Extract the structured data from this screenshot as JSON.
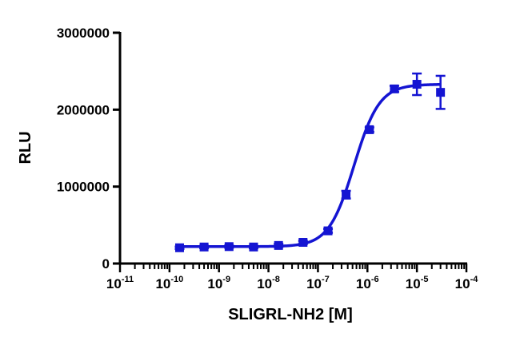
{
  "chart_data": {
    "type": "scatter",
    "xlabel": "SLIGRL-NH2 [M]",
    "ylabel": "RLU",
    "x_scale": "log",
    "xlim": [
      1e-11,
      0.0001
    ],
    "ylim": [
      0,
      3000000
    ],
    "x_ticks": [
      {
        "base": "10",
        "exp": "-11",
        "value": 1e-11
      },
      {
        "base": "10",
        "exp": "-10",
        "value": 1e-10
      },
      {
        "base": "10",
        "exp": "-9",
        "value": 1e-09
      },
      {
        "base": "10",
        "exp": "-8",
        "value": 1e-08
      },
      {
        "base": "10",
        "exp": "-7",
        "value": 1e-07
      },
      {
        "base": "10",
        "exp": "-6",
        "value": 1e-06
      },
      {
        "base": "10",
        "exp": "-5",
        "value": 1e-05
      },
      {
        "base": "10",
        "exp": "-4",
        "value": 0.0001
      }
    ],
    "y_ticks": [
      {
        "label": "0",
        "value": 0
      },
      {
        "label": "1000000",
        "value": 1000000
      },
      {
        "label": "2000000",
        "value": 2000000
      },
      {
        "label": "3000000",
        "value": 3000000
      }
    ],
    "grid": false,
    "legend": "none",
    "color": "#1414d2",
    "series": [
      {
        "points": [
          {
            "x": 1.6e-10,
            "y": 205000,
            "err": 15000
          },
          {
            "x": 5e-10,
            "y": 215000,
            "err": 15000
          },
          {
            "x": 1.6e-09,
            "y": 220000,
            "err": 15000
          },
          {
            "x": 5e-09,
            "y": 215000,
            "err": 15000
          },
          {
            "x": 1.6e-08,
            "y": 235000,
            "err": 20000
          },
          {
            "x": 5e-08,
            "y": 275000,
            "err": 20000
          },
          {
            "x": 1.6e-07,
            "y": 425000,
            "err": 25000
          },
          {
            "x": 3.7e-07,
            "y": 895000,
            "err": 50000
          },
          {
            "x": 1.1e-06,
            "y": 1740000,
            "err": 30000
          },
          {
            "x": 3.5e-06,
            "y": 2270000,
            "err": 40000
          },
          {
            "x": 1e-05,
            "y": 2330000,
            "err": 140000
          },
          {
            "x": 3e-05,
            "y": 2225000,
            "err": 215000
          }
        ],
        "fit": {
          "bottom": 220000,
          "top": 2330000,
          "log_ec50": -6.27,
          "hill": 1.7
        }
      }
    ]
  }
}
